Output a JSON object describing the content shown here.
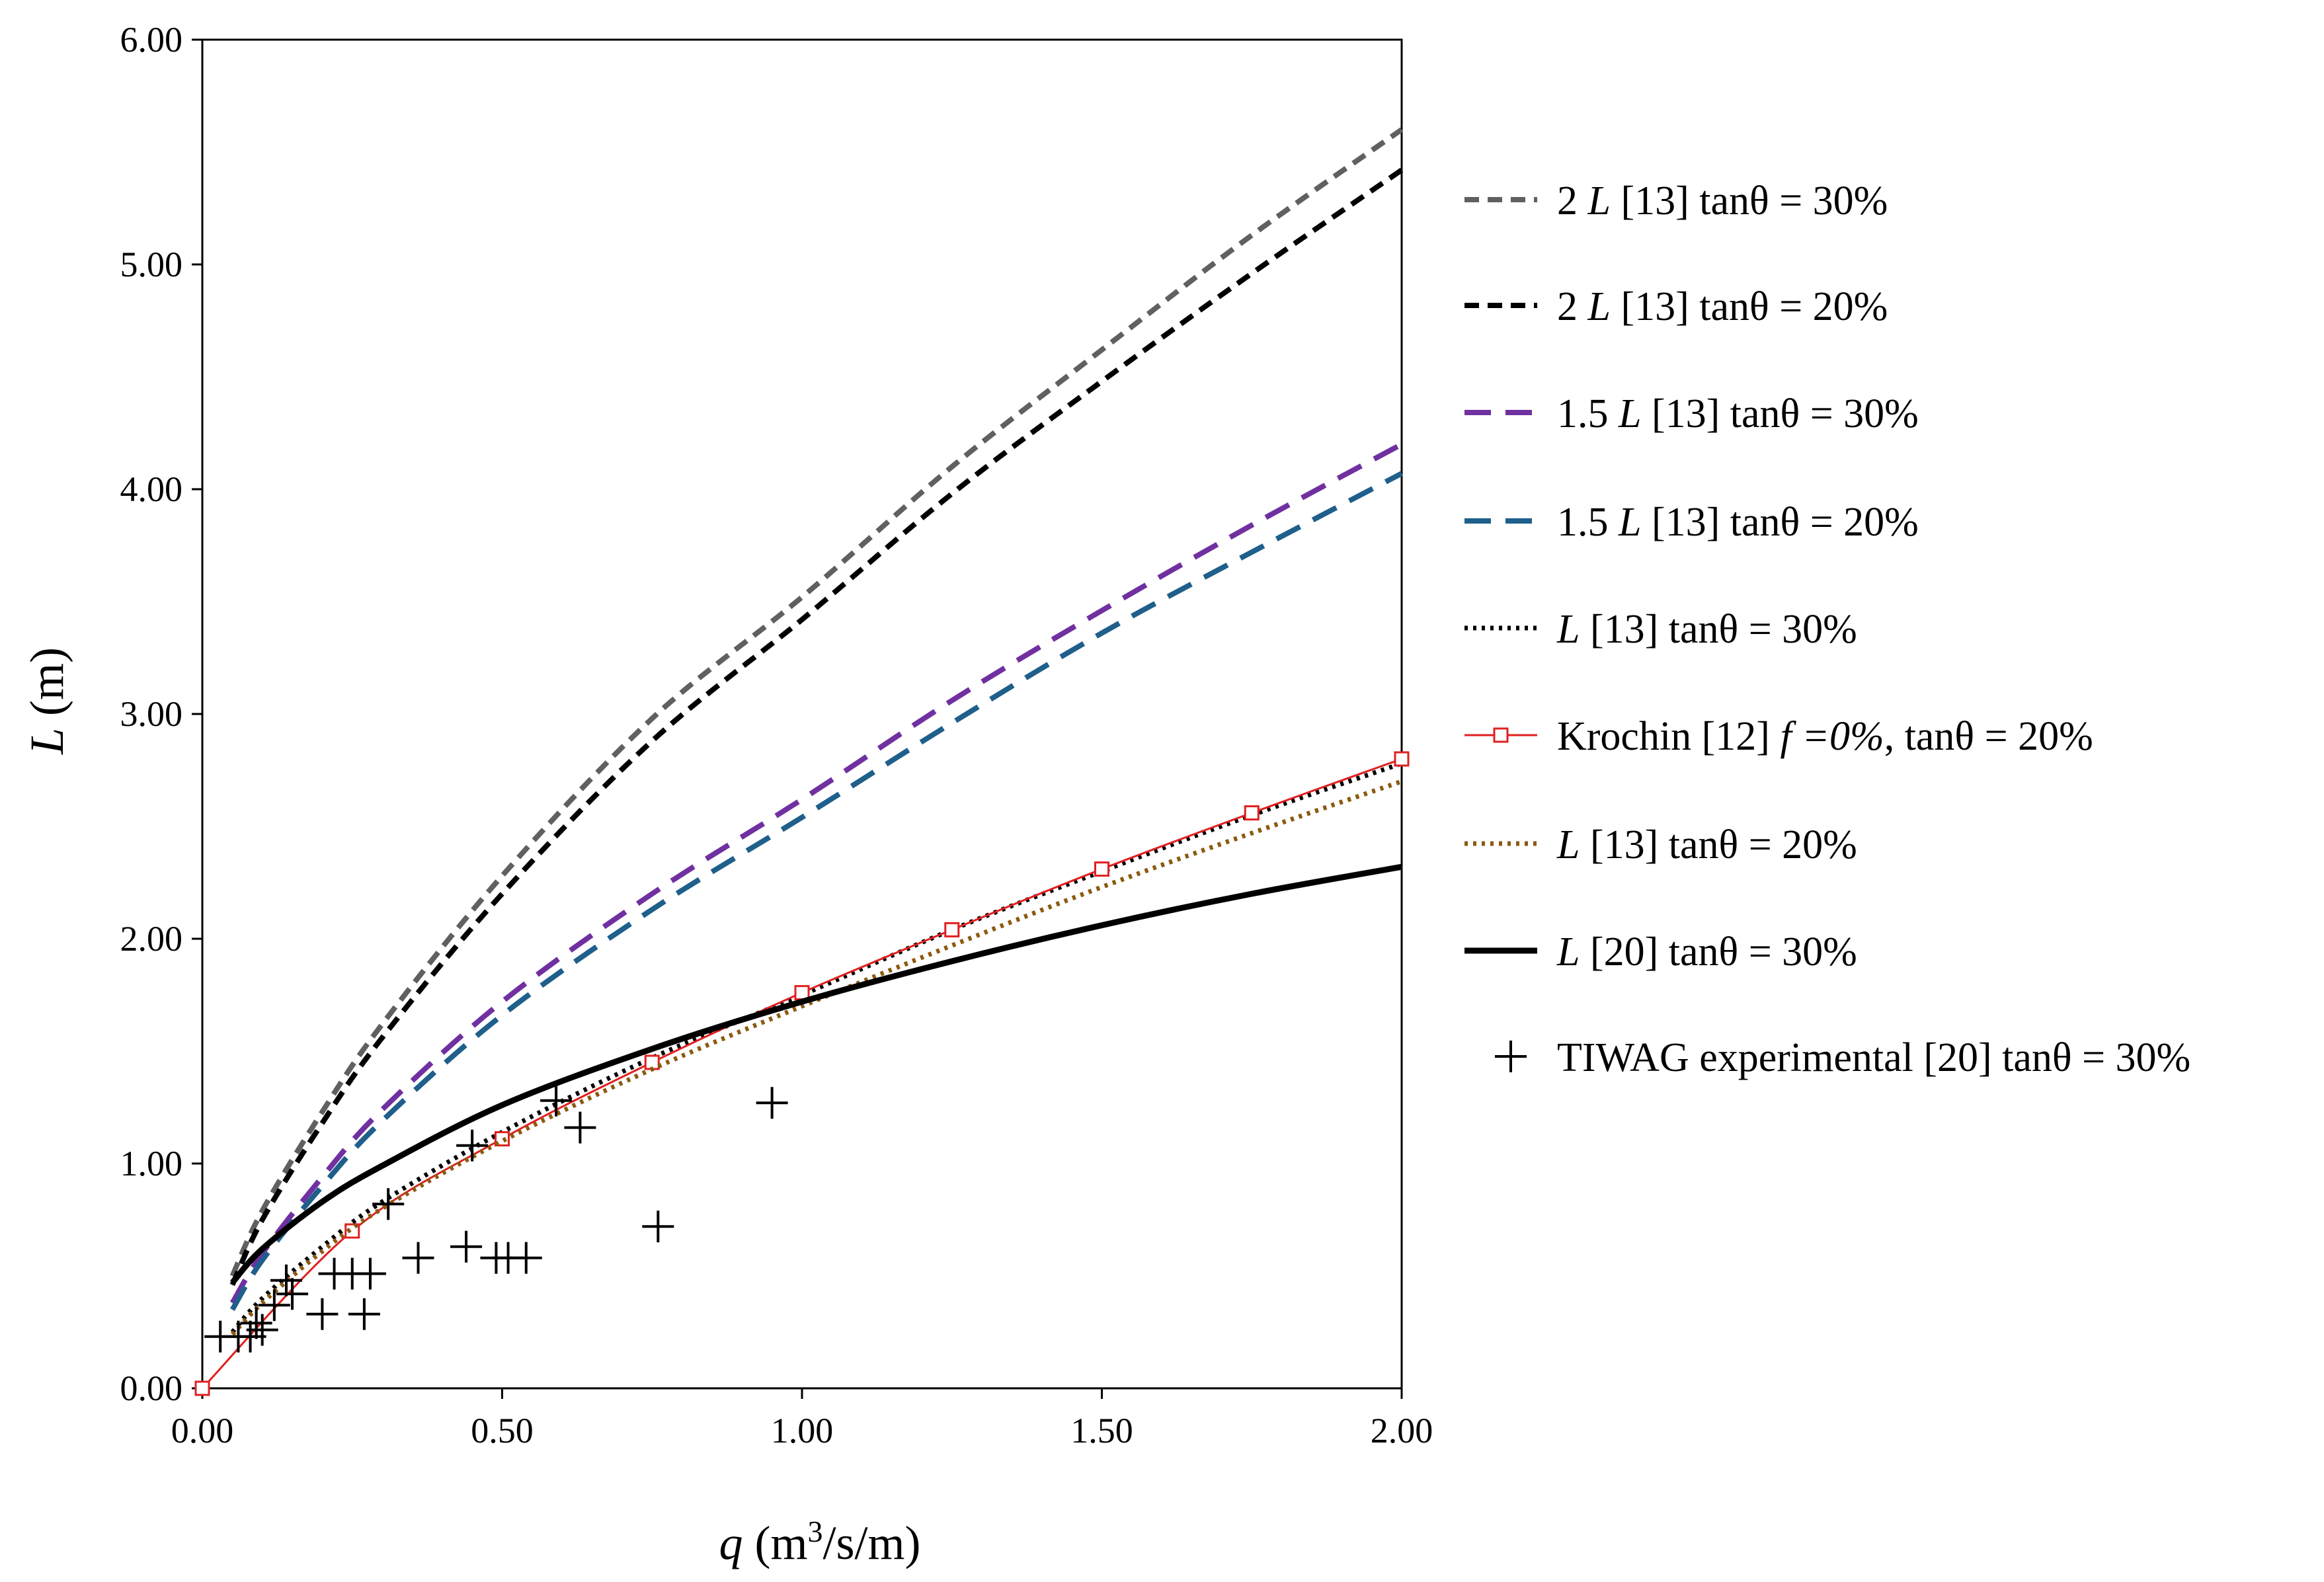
{
  "chart_data": {
    "type": "line",
    "xlabel": {
      "italic": "q",
      "rest": " (m",
      "sup": "3",
      "tail": "/s/m)"
    },
    "ylabel": {
      "italic": "L",
      "rest": " (m)"
    },
    "xlim": [
      0,
      2
    ],
    "ylim": [
      0,
      6
    ],
    "x_ticks": [
      "0.00",
      "0.50",
      "1.00",
      "1.50",
      "2.00"
    ],
    "y_ticks": [
      "0.00",
      "1.00",
      "2.00",
      "3.00",
      "4.00",
      "5.00",
      "6.00"
    ],
    "grid": false,
    "legend_position": "right",
    "series": [
      {
        "name": "2 L [13] tanθ = 30%",
        "legend": [
          {
            "t": "2 "
          },
          {
            "t": "L",
            "i": true
          },
          {
            "t": "  [13] tanθ = 30%"
          }
        ],
        "style": "dashed",
        "color": "#606060",
        "x": [
          0.05,
          0.1,
          0.2,
          0.3,
          0.5,
          0.75,
          1.0,
          1.25,
          1.5,
          1.75,
          2.0
        ],
        "y": [
          0.5,
          0.79,
          1.23,
          1.62,
          2.28,
          2.98,
          3.52,
          4.1,
          4.62,
          5.13,
          5.6
        ]
      },
      {
        "name": "2 L [13] tanθ = 20%",
        "legend": [
          {
            "t": "2 "
          },
          {
            "t": "L",
            "i": true
          },
          {
            "t": "  [13] tanθ = 20%"
          }
        ],
        "style": "dashed",
        "color": "#000000",
        "x": [
          0.05,
          0.1,
          0.2,
          0.3,
          0.5,
          0.75,
          1.0,
          1.25,
          1.5,
          1.75,
          2.0
        ],
        "y": [
          0.46,
          0.75,
          1.18,
          1.56,
          2.2,
          2.88,
          3.42,
          3.98,
          4.48,
          4.96,
          5.42
        ]
      },
      {
        "name": "1.5 L [13] tanθ = 30%",
        "legend": [
          {
            "t": "1.5 "
          },
          {
            "t": "L",
            "i": true
          },
          {
            "t": "  [13] tanθ = 30%"
          }
        ],
        "style": "longdash",
        "color": "#7030A0",
        "x": [
          0.05,
          0.1,
          0.2,
          0.3,
          0.5,
          0.75,
          1.0,
          1.25,
          1.5,
          1.75,
          2.0
        ],
        "y": [
          0.38,
          0.6,
          0.94,
          1.24,
          1.72,
          2.2,
          2.62,
          3.06,
          3.46,
          3.84,
          4.2
        ]
      },
      {
        "name": "1.5 L [13] tanθ = 20%",
        "legend": [
          {
            "t": "1.5 "
          },
          {
            "t": "L",
            "i": true
          },
          {
            "t": "  [13] tanθ = 20%"
          }
        ],
        "style": "longdash",
        "color": "#1F5F8B",
        "x": [
          0.05,
          0.1,
          0.2,
          0.3,
          0.5,
          0.75,
          1.0,
          1.25,
          1.5,
          1.75,
          2.0
        ],
        "y": [
          0.35,
          0.57,
          0.9,
          1.19,
          1.66,
          2.13,
          2.54,
          2.96,
          3.36,
          3.72,
          4.07
        ]
      },
      {
        "name": "L [13] tanθ = 30%",
        "legend": [
          {
            "t": "L",
            "i": true
          },
          {
            "t": " [13] tanθ = 30%"
          }
        ],
        "style": "dotted",
        "color": "#000000",
        "x": [
          0.05,
          0.1,
          0.2,
          0.3,
          0.5,
          0.75,
          1.0,
          1.25,
          1.5,
          1.75,
          2.0
        ],
        "y": [
          0.25,
          0.4,
          0.63,
          0.83,
          1.14,
          1.47,
          1.75,
          2.04,
          2.3,
          2.55,
          2.78
        ]
      },
      {
        "name": "Krochin [12] f =0%, tanθ = 20%",
        "legend": [
          {
            "t": "Krochin [12] "
          },
          {
            "t": "f =0%",
            "i": true
          },
          {
            "t": ", tanθ = 20%"
          }
        ],
        "style": "solid-marker",
        "color": "#E02020",
        "x": [
          0.0,
          0.25,
          0.5,
          0.75,
          1.0,
          1.25,
          1.5,
          1.75,
          2.0
        ],
        "y": [
          0.0,
          0.7,
          1.11,
          1.45,
          1.76,
          2.04,
          2.31,
          2.56,
          2.8
        ]
      },
      {
        "name": "L [13] tanθ = 20%",
        "legend": [
          {
            "t": "L",
            "i": true
          },
          {
            "t": " [13] tanθ = 20%"
          }
        ],
        "style": "dotted",
        "color": "#8B5A10",
        "x": [
          0.05,
          0.1,
          0.2,
          0.3,
          0.5,
          0.75,
          1.0,
          1.25,
          1.5,
          1.75,
          2.0
        ],
        "y": [
          0.24,
          0.38,
          0.61,
          0.8,
          1.1,
          1.42,
          1.7,
          1.97,
          2.23,
          2.47,
          2.7
        ]
      },
      {
        "name": "L [20] tanθ = 30%",
        "legend": [
          {
            "t": "L",
            "i": true
          },
          {
            "t": " [20] tanθ = 30%"
          }
        ],
        "style": "thick",
        "color": "#000000",
        "x": [
          0.05,
          0.1,
          0.2,
          0.3,
          0.5,
          0.75,
          1.0,
          1.25,
          1.5,
          1.75,
          2.0
        ],
        "y": [
          0.47,
          0.62,
          0.83,
          0.99,
          1.26,
          1.51,
          1.72,
          1.9,
          2.06,
          2.2,
          2.32
        ]
      },
      {
        "name": "TIWAG experimental [20] tanθ = 30%",
        "legend": [
          {
            "t": "TIWAG  experimental  [20] tanθ = 30%"
          }
        ],
        "style": "scatter-plus",
        "color": "#000000",
        "x": [
          0.03,
          0.06,
          0.08,
          0.09,
          0.1,
          0.12,
          0.14,
          0.15,
          0.2,
          0.22,
          0.25,
          0.27,
          0.28,
          0.31,
          0.36,
          0.44,
          0.45,
          0.49,
          0.51,
          0.54,
          0.59,
          0.63,
          0.76,
          0.95
        ],
        "y": [
          0.23,
          0.23,
          0.23,
          0.29,
          0.26,
          0.37,
          0.48,
          0.42,
          0.33,
          0.51,
          0.51,
          0.33,
          0.51,
          0.82,
          0.58,
          0.63,
          1.08,
          0.58,
          0.58,
          0.58,
          1.28,
          1.16,
          0.72,
          1.27
        ]
      }
    ]
  }
}
